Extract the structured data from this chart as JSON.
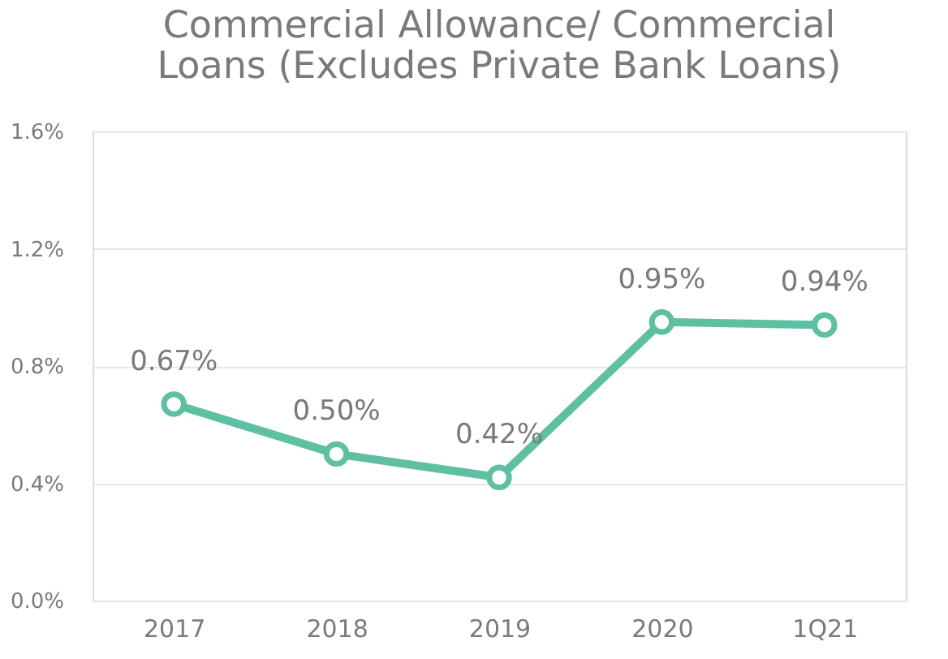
{
  "chart_data": {
    "type": "line",
    "title": "Commercial Allowance/ Commercial\nLoans (Excludes Private Bank Loans)",
    "categories": [
      "2017",
      "2018",
      "2019",
      "2020",
      "1Q21"
    ],
    "series": [
      {
        "color": "#5ebfa2",
        "values": [
          0.67,
          0.5,
          0.42,
          0.95,
          0.94
        ],
        "value_labels": [
          "0.67%",
          "0.50%",
          "0.42%",
          "0.95%",
          "0.94%"
        ]
      }
    ],
    "ylim": [
      0,
      1.6
    ],
    "yticks": [
      {
        "value": 0,
        "label": "0.0%"
      },
      {
        "value": 0.4,
        "label": "0.4%"
      },
      {
        "value": 0.8,
        "label": "0.8%"
      },
      {
        "value": 1.2,
        "label": "1.2%"
      },
      {
        "value": 1.6,
        "label": "1.6%"
      }
    ],
    "grid": "y",
    "marker": "circle",
    "line_style": "solid"
  }
}
